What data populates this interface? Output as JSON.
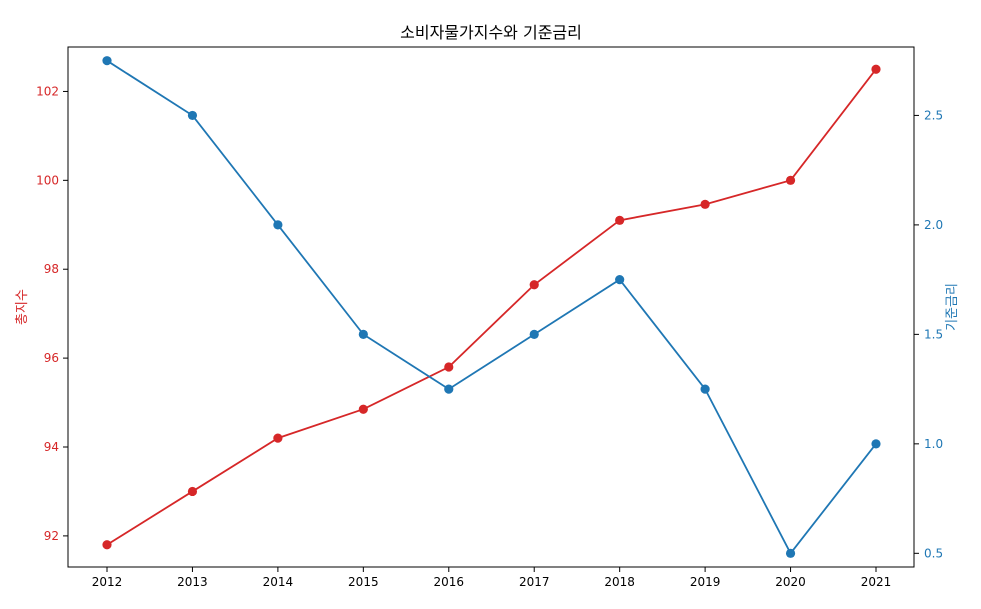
{
  "chart_data": {
    "type": "line",
    "title": "소비자물가지수와 기준금리",
    "xlabel": "",
    "categories": [
      "2012",
      "2013",
      "2014",
      "2015",
      "2016",
      "2017",
      "2018",
      "2019",
      "2020",
      "2021"
    ],
    "series": [
      {
        "name": "총지수",
        "axis": "left",
        "color": "#d62728",
        "values": [
          91.8,
          93.0,
          94.2,
          94.85,
          95.8,
          97.65,
          99.1,
          99.46,
          100.0,
          102.5
        ]
      },
      {
        "name": "기준금리",
        "axis": "right",
        "color": "#1f77b4",
        "values": [
          2.75,
          2.5,
          2.0,
          1.5,
          1.25,
          1.5,
          1.75,
          1.25,
          0.5,
          1.0
        ]
      }
    ],
    "y_left": {
      "label": "총지수",
      "color": "#d62728",
      "ylim": [
        91.3,
        103.0
      ],
      "ticks": [
        92,
        94,
        96,
        98,
        100,
        102
      ],
      "tick_labels": [
        "92",
        "94",
        "96",
        "98",
        "100",
        "102"
      ]
    },
    "y_right": {
      "label": "기준금리",
      "color": "#1f77b4",
      "ylim": [
        0.4375,
        2.8125
      ],
      "ticks": [
        0.5,
        1.0,
        1.5,
        2.0,
        2.5
      ],
      "tick_labels": [
        "0.5",
        "1.0",
        "1.5",
        "2.0",
        "2.5"
      ]
    },
    "grid": false,
    "legend": "none"
  }
}
